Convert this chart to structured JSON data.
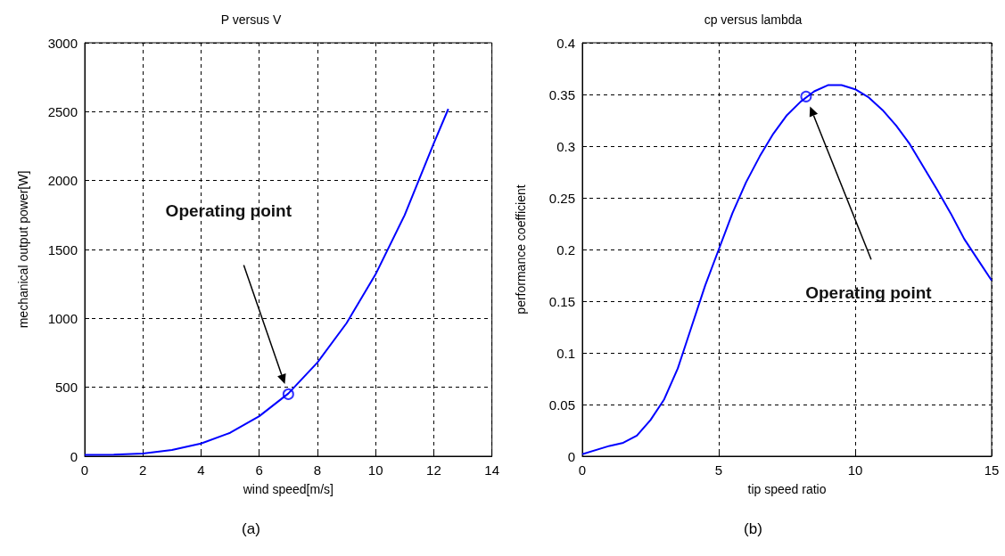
{
  "chart_data": [
    {
      "type": "line",
      "title": "P versus V",
      "xlabel": "wind speed[m/s]",
      "ylabel": "mechanical output power[W]",
      "xlim": [
        0,
        14
      ],
      "xticks": [
        0,
        2,
        4,
        6,
        8,
        10,
        12,
        14
      ],
      "ylim": [
        0,
        3000
      ],
      "yticks": [
        0,
        500,
        1000,
        1500,
        2000,
        2500,
        3000
      ],
      "grid": true,
      "series": [
        {
          "color": "#0000ff",
          "marker": "none",
          "x": [
            0,
            1,
            2,
            3,
            4,
            5,
            6,
            7,
            8,
            9,
            10,
            11,
            12,
            12.5
          ],
          "values": [
            10,
            12,
            20,
            45,
            92,
            170,
            290,
            455,
            680,
            965,
            1320,
            1750,
            2270,
            2520
          ]
        },
        {
          "type": "scatter",
          "color": "#0000ff",
          "marker": "circle",
          "x": [
            7
          ],
          "values": [
            450
          ]
        }
      ],
      "annotations": [
        "Operating point",
        "(a)"
      ]
    },
    {
      "type": "line",
      "title": "cp versus lambda",
      "xlabel": "tip speed ratio",
      "ylabel": "performance coefficient",
      "xlim": [
        0,
        15
      ],
      "xticks": [
        0,
        5,
        10,
        15
      ],
      "ylim": [
        0,
        0.4
      ],
      "yticks": [
        0,
        0.05,
        0.1,
        0.15,
        0.2,
        0.25,
        0.3,
        0.35,
        0.4
      ],
      "grid": true,
      "series": [
        {
          "color": "#0000ff",
          "marker": "none",
          "x": [
            0,
            1,
            1.5,
            2,
            2.5,
            3,
            3.5,
            4,
            4.5,
            5,
            5.5,
            6,
            6.5,
            7,
            7.5,
            8,
            8.5,
            9,
            9.5,
            10,
            10.5,
            11,
            11.5,
            12,
            12.5,
            13,
            13.5,
            14,
            14.5,
            15
          ],
          "values": [
            0.002,
            0.01,
            0.013,
            0.02,
            0.035,
            0.055,
            0.085,
            0.125,
            0.165,
            0.2,
            0.235,
            0.265,
            0.29,
            0.312,
            0.33,
            0.343,
            0.353,
            0.359,
            0.359,
            0.355,
            0.347,
            0.335,
            0.32,
            0.302,
            0.28,
            0.258,
            0.235,
            0.21,
            0.19,
            0.17
          ]
        },
        {
          "type": "scatter",
          "color": "#0000ff",
          "marker": "circle",
          "x": [
            8.2
          ],
          "values": [
            0.348
          ]
        }
      ],
      "annotations": [
        "Operating point",
        "(b)"
      ]
    }
  ]
}
